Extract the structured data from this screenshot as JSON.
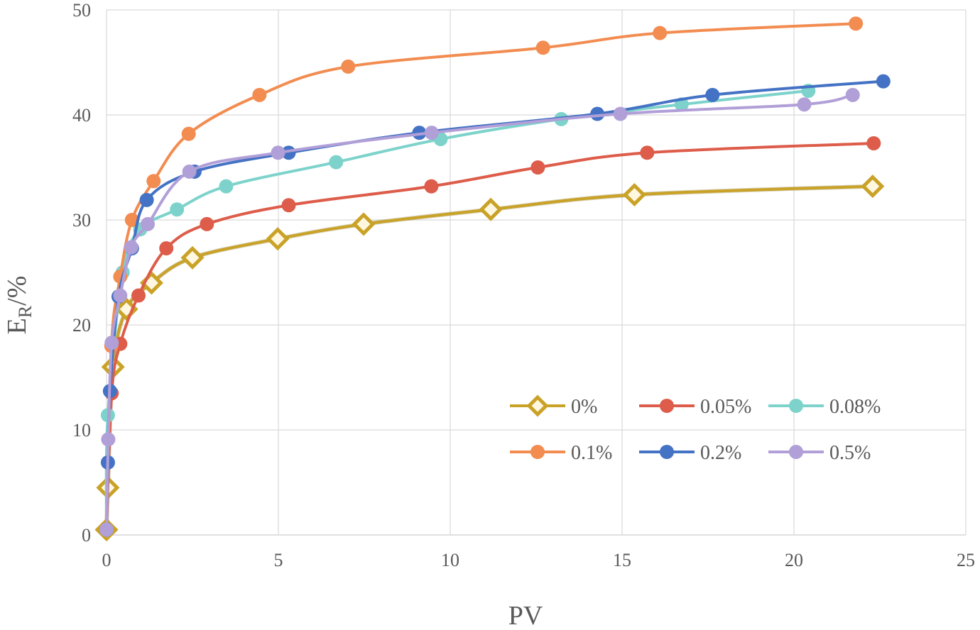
{
  "chart_data": {
    "type": "line",
    "title": "",
    "xlabel": "PV",
    "ylabel_main": "E",
    "ylabel_sub": "R",
    "ylabel_tail": "/%",
    "xlim": [
      0,
      25
    ],
    "ylim": [
      0,
      50
    ],
    "xticks": [
      0,
      5,
      10,
      15,
      20,
      25
    ],
    "yticks": [
      0,
      10,
      20,
      30,
      40,
      50
    ],
    "grid": true,
    "smooth": true,
    "legend_position": "bottom-right",
    "series": [
      {
        "name": "0%",
        "color": "#c9a227",
        "marker": "diamond",
        "x": [
          0.0,
          0.04,
          0.19,
          0.58,
          1.31,
          2.5,
          4.98,
          7.48,
          11.18,
          15.36,
          22.29
        ],
        "y": [
          0.5,
          4.5,
          16.0,
          21.5,
          24.0,
          26.4,
          28.2,
          29.6,
          31.0,
          32.4,
          33.2
        ]
      },
      {
        "name": "0.05%",
        "color": "#dd5c4a",
        "marker": "circle",
        "x": [
          0.0,
          0.15,
          0.4,
          0.93,
          1.74,
          2.92,
          5.3,
          9.45,
          12.55,
          15.73,
          22.32
        ],
        "y": [
          0.5,
          13.5,
          18.2,
          22.8,
          27.3,
          29.6,
          31.4,
          33.2,
          35.0,
          36.4,
          37.3
        ]
      },
      {
        "name": "0.08%",
        "color": "#7dd3cb",
        "marker": "circle",
        "x": [
          0.0,
          0.04,
          0.47,
          0.98,
          2.05,
          3.48,
          6.68,
          9.72,
          13.23,
          16.73,
          20.42
        ],
        "y": [
          0.5,
          11.4,
          25.0,
          29.1,
          31.0,
          33.2,
          35.5,
          37.7,
          39.6,
          41.0,
          42.3
        ]
      },
      {
        "name": "0.1%",
        "color": "#f28c50",
        "marker": "circle",
        "x": [
          0.0,
          0.14,
          0.4,
          0.74,
          1.37,
          2.39,
          4.45,
          7.03,
          12.7,
          16.1,
          21.8
        ],
        "y": [
          0.5,
          18.0,
          24.6,
          30.0,
          33.7,
          38.2,
          41.9,
          44.6,
          46.4,
          47.8,
          48.7
        ]
      },
      {
        "name": "0.2%",
        "color": "#4472c4",
        "marker": "circle",
        "x": [
          0.0,
          0.04,
          0.1,
          0.35,
          0.74,
          1.17,
          2.56,
          5.3,
          9.1,
          14.28,
          17.63,
          22.6
        ],
        "y": [
          0.5,
          6.9,
          13.7,
          22.7,
          27.3,
          31.9,
          34.6,
          36.4,
          38.3,
          40.1,
          41.9,
          43.2
        ]
      },
      {
        "name": "0.5%",
        "color": "#b19fd8",
        "marker": "circle",
        "x": [
          0.0,
          0.05,
          0.15,
          0.4,
          0.72,
          1.2,
          2.41,
          4.99,
          9.46,
          14.95,
          20.3,
          21.71
        ],
        "y": [
          0.5,
          9.1,
          18.3,
          22.8,
          27.4,
          29.6,
          34.6,
          36.4,
          38.3,
          40.1,
          41.0,
          41.9
        ]
      }
    ]
  }
}
